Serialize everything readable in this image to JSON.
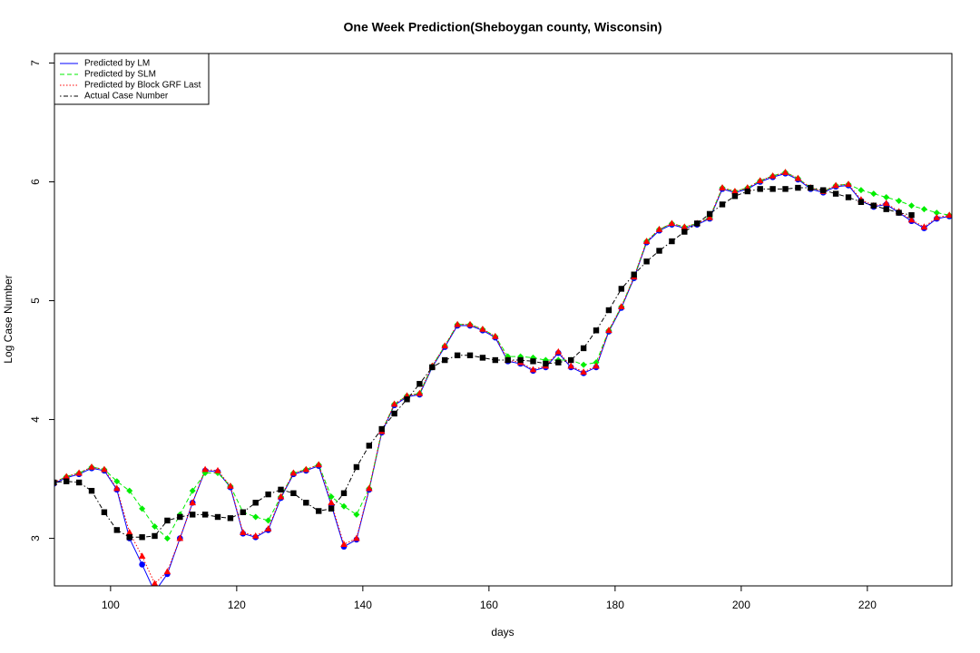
{
  "chart_data": {
    "type": "line",
    "title": "One Week Prediction(Sheboygan county, Wisconsin)",
    "x_label": "days",
    "y_label": "Log Case Number",
    "x": [
      91,
      93,
      95,
      97,
      99,
      101,
      103,
      105,
      107,
      109,
      111,
      113,
      115,
      117,
      119,
      121,
      123,
      125,
      127,
      129,
      131,
      133,
      135,
      137,
      139,
      141,
      143,
      145,
      147,
      149,
      151,
      153,
      155,
      157,
      159,
      161,
      163,
      165,
      167,
      169,
      171,
      173,
      175,
      177,
      179,
      181,
      183,
      185,
      187,
      189,
      191,
      193,
      195,
      197,
      199,
      201,
      203,
      205,
      207,
      209,
      211,
      213,
      215,
      217,
      219,
      221,
      223,
      225,
      227,
      229,
      231,
      233
    ],
    "xlim": [
      91.1,
      233.4
    ],
    "xticks": [
      100,
      120,
      140,
      160,
      180,
      200,
      220
    ],
    "ylim": [
      2.6,
      7.08
    ],
    "yticks": [
      3,
      4,
      5,
      6,
      7
    ],
    "grid": false,
    "legend": "top-left",
    "series": [
      {
        "name": "Predicted by LM",
        "color": "#0000ff",
        "line_style": "solid",
        "marker": "circle",
        "values": [
          3.46,
          3.51,
          3.54,
          3.59,
          3.57,
          3.41,
          3.0,
          2.78,
          2.55,
          2.7,
          3.0,
          3.3,
          3.57,
          3.56,
          3.43,
          3.04,
          3.01,
          3.07,
          3.34,
          3.54,
          3.57,
          3.61,
          3.28,
          2.93,
          2.99,
          3.41,
          3.89,
          4.12,
          4.19,
          4.21,
          4.44,
          4.61,
          4.79,
          4.79,
          4.75,
          4.69,
          4.49,
          4.47,
          4.41,
          4.44,
          4.56,
          4.44,
          4.39,
          4.44,
          4.74,
          4.94,
          5.19,
          5.49,
          5.59,
          5.64,
          5.61,
          5.64,
          5.69,
          5.94,
          5.91,
          5.94,
          6.0,
          6.04,
          6.07,
          6.02,
          5.94,
          5.91,
          5.96,
          5.97,
          5.84,
          5.79,
          5.81,
          5.74,
          5.67,
          5.61,
          5.69,
          5.71
        ]
      },
      {
        "name": "Predicted by SLM",
        "color": "#00ee00",
        "line_style": "dashed",
        "marker": "diamond",
        "values": [
          3.47,
          3.52,
          3.55,
          3.6,
          3.58,
          3.48,
          3.4,
          3.25,
          3.1,
          3.0,
          3.2,
          3.4,
          3.55,
          3.55,
          3.44,
          3.22,
          3.18,
          3.15,
          3.35,
          3.55,
          3.58,
          3.62,
          3.35,
          3.27,
          3.2,
          3.42,
          3.9,
          4.13,
          4.2,
          4.22,
          4.45,
          4.62,
          4.8,
          4.8,
          4.76,
          4.7,
          4.53,
          4.53,
          4.52,
          4.5,
          4.5,
          4.5,
          4.46,
          4.48,
          4.75,
          4.95,
          5.2,
          5.5,
          5.6,
          5.65,
          5.62,
          5.65,
          5.7,
          5.95,
          5.92,
          5.95,
          6.01,
          6.05,
          6.08,
          6.03,
          5.95,
          5.92,
          5.97,
          5.98,
          5.93,
          5.9,
          5.87,
          5.84,
          5.8,
          5.77,
          5.74,
          5.72
        ]
      },
      {
        "name": "Predicted by Block GRF Last",
        "color": "#ff0000",
        "line_style": "dotted",
        "marker": "triangle",
        "values": [
          3.47,
          3.52,
          3.55,
          3.6,
          3.58,
          3.42,
          3.05,
          2.85,
          2.62,
          2.72,
          3.0,
          3.3,
          3.58,
          3.57,
          3.44,
          3.05,
          3.02,
          3.08,
          3.35,
          3.55,
          3.58,
          3.62,
          3.3,
          2.95,
          3.0,
          3.42,
          3.9,
          4.13,
          4.2,
          4.22,
          4.45,
          4.62,
          4.8,
          4.8,
          4.76,
          4.7,
          4.5,
          4.48,
          4.42,
          4.45,
          4.57,
          4.45,
          4.4,
          4.45,
          4.75,
          4.95,
          5.2,
          5.5,
          5.6,
          5.65,
          5.62,
          5.65,
          5.7,
          5.95,
          5.92,
          5.95,
          6.01,
          6.05,
          6.08,
          6.03,
          5.95,
          5.92,
          5.97,
          5.98,
          5.85,
          5.8,
          5.82,
          5.75,
          5.68,
          5.62,
          5.7,
          5.72
        ]
      },
      {
        "name": "Actual Case Number",
        "color": "#000000",
        "line_style": "dotdash",
        "marker": "square",
        "values": [
          3.47,
          3.48,
          3.47,
          3.4,
          3.22,
          3.07,
          3.01,
          3.01,
          3.02,
          3.15,
          3.18,
          3.2,
          3.2,
          3.18,
          3.17,
          3.22,
          3.3,
          3.37,
          3.41,
          3.38,
          3.3,
          3.23,
          3.25,
          3.38,
          3.6,
          3.78,
          3.92,
          4.05,
          4.17,
          4.3,
          4.44,
          4.5,
          4.54,
          4.54,
          4.52,
          4.5,
          4.5,
          4.5,
          4.49,
          4.47,
          4.48,
          4.5,
          4.6,
          4.75,
          4.92,
          5.1,
          5.22,
          5.33,
          5.42,
          5.5,
          5.58,
          5.65,
          5.73,
          5.81,
          5.88,
          5.92,
          5.94,
          5.94,
          5.94,
          5.95,
          5.95,
          5.93,
          5.9,
          5.87,
          5.83,
          5.8,
          5.77,
          5.74,
          5.72,
          null,
          null,
          null
        ]
      }
    ]
  }
}
